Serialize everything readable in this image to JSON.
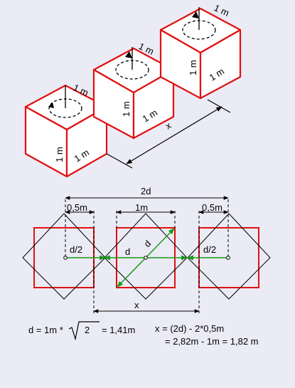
{
  "colors": {
    "background": "#ebebf5",
    "cube_edge": "#e01010",
    "cube_face": "#ffffff",
    "outline": "#000000",
    "diagonal": "#1a9a1a"
  },
  "cubes": {
    "size_labels": [
      "1 m",
      "1 m",
      "1 m",
      "1 m",
      "1 m",
      "1 m",
      "1 m",
      "1 m",
      "1 m"
    ],
    "distance_label": "x"
  },
  "plan": {
    "dim_2d": "2d",
    "dim_half_left": "0,5m",
    "dim_1m": "1m",
    "dim_half_right": "0,5m",
    "label_d_half_left": "d/2",
    "label_d": "d",
    "label_d_diag": "d",
    "label_d_half_right": "d/2",
    "dim_x": "x"
  },
  "formulas": {
    "d_left": "d = 1m *",
    "d_root": "2",
    "d_right": "= 1,41m",
    "x_line1": "x = (2d) - 2*0,5m",
    "x_line2": "= 2,82m - 1m = 1,82 m"
  }
}
